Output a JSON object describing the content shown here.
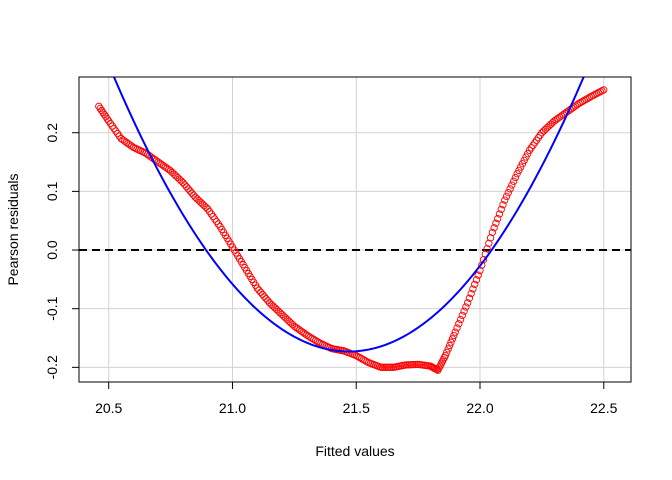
{
  "chart_data": {
    "type": "scatter",
    "xlabel": "Fitted values",
    "ylabel": "Pearson residuals",
    "xlim": [
      20.38,
      22.61
    ],
    "ylim": [
      -0.225,
      0.295
    ],
    "x_ticks": [
      "20.5",
      "21.0",
      "21.5",
      "22.0",
      "22.5"
    ],
    "y_ticks": [
      "-0.2",
      "-0.1",
      "0.0",
      "0.1",
      "0.2"
    ],
    "grid": true,
    "colors": {
      "points": "#ff0000",
      "smooth": "#0000ff",
      "reference": "#000000",
      "grid": "#d3d3d3"
    },
    "reference_line": {
      "y": 0.0,
      "style": "dashed"
    },
    "smooth_curve": {
      "type": "quadratic",
      "x": [
        20.52,
        20.6,
        20.7,
        20.8,
        20.9,
        21.0,
        21.1,
        21.2,
        21.3,
        21.4,
        21.5,
        21.6,
        21.7,
        21.8,
        21.9,
        22.0,
        22.1,
        22.2,
        22.3,
        22.4,
        22.5
      ],
      "y": [
        0.295,
        0.218,
        0.132,
        0.058,
        -0.008,
        -0.063,
        -0.107,
        -0.14,
        -0.162,
        -0.172,
        -0.172,
        -0.16,
        -0.138,
        -0.104,
        -0.059,
        -0.004,
        0.062,
        0.138,
        0.224,
        0.295,
        0.295
      ]
    },
    "series": [
      {
        "x": [
          20.46,
          20.5,
          20.55,
          20.6,
          20.65,
          20.7,
          20.75,
          20.8,
          20.85,
          20.9,
          20.95,
          21.0,
          21.05,
          21.1,
          21.15,
          21.2,
          21.25,
          21.3,
          21.35,
          21.4,
          21.45,
          21.5,
          21.55,
          21.6,
          21.65,
          21.7,
          21.75,
          21.8,
          21.83,
          21.86,
          21.9,
          21.95,
          22.0,
          22.05,
          22.1,
          22.15,
          22.2,
          22.25,
          22.3,
          22.35,
          22.4,
          22.45,
          22.5
        ],
        "y": [
          0.245,
          0.22,
          0.19,
          0.175,
          0.165,
          0.15,
          0.135,
          0.115,
          0.09,
          0.07,
          0.04,
          0.005,
          -0.03,
          -0.065,
          -0.09,
          -0.11,
          -0.13,
          -0.145,
          -0.158,
          -0.168,
          -0.172,
          -0.18,
          -0.192,
          -0.2,
          -0.2,
          -0.196,
          -0.195,
          -0.198,
          -0.205,
          -0.18,
          -0.14,
          -0.09,
          -0.035,
          0.03,
          0.085,
          0.13,
          0.17,
          0.2,
          0.22,
          0.235,
          0.25,
          0.262,
          0.273
        ]
      }
    ]
  }
}
